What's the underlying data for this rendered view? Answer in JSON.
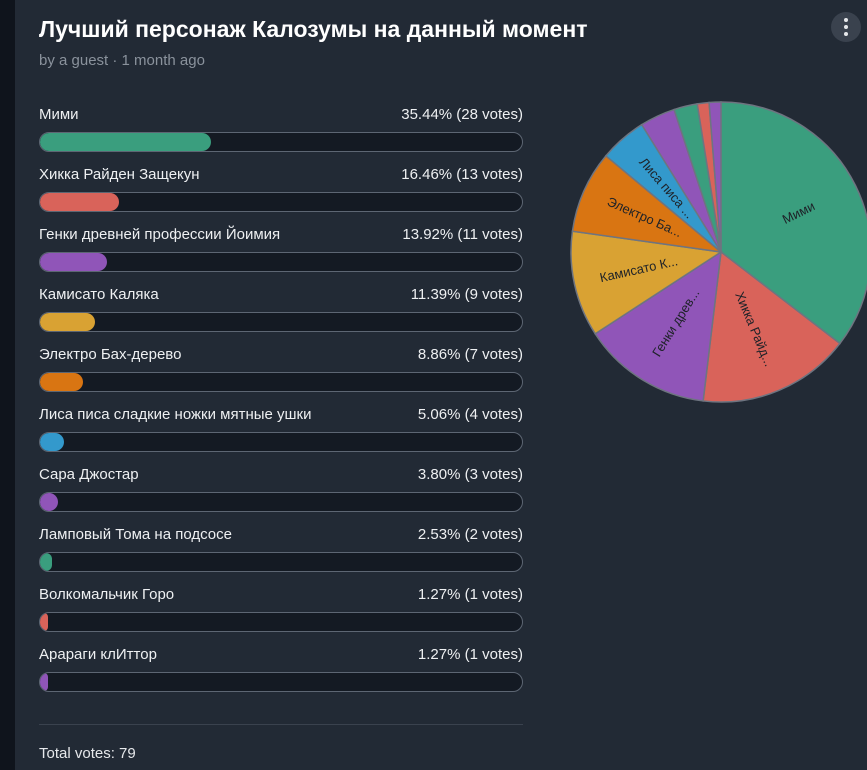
{
  "poll": {
    "title": "Лучший персонаж Калозумы на данный момент",
    "subtitle": "by a guest · 1 month ago",
    "total_votes": "Total votes: 79",
    "menu_icon": "vertical-dots-icon"
  },
  "chart_data": {
    "type": "pie",
    "categories": [
      "Мими",
      "Хикка Райден Защекун",
      "Генки древней профессии Йоимия",
      "Камисато Каляка",
      "Электро Бах-дерево",
      "Лиса писа сладкие ножки мятные ушки",
      "Сара Джостар",
      "Ламповый Тома на подсосе",
      "Волкомальчик Горо",
      "Арараги клИттор"
    ],
    "values": [
      28,
      13,
      11,
      9,
      7,
      4,
      3,
      2,
      1,
      1
    ],
    "percent_labels": [
      "35.44%",
      "16.46%",
      "13.92%",
      "11.39%",
      "8.86%",
      "5.06%",
      "3.80%",
      "2.53%",
      "1.27%",
      "1.27%"
    ],
    "vote_labels": [
      "(28 votes)",
      "(13 votes)",
      "(11 votes)",
      "(9 votes)",
      "(7 votes)",
      "(4 votes)",
      "(3 votes)",
      "(2 votes)",
      "(1 votes)",
      "(1 votes)"
    ],
    "slice_labels": [
      "Мими",
      "Хикка Райд...",
      "Генки древ...",
      "Камисато К...",
      "Электро Ба...",
      "Лиса писа ...",
      "",
      "",
      "",
      ""
    ],
    "colors": [
      "#3a9e7e",
      "#d9635a",
      "#9055b8",
      "#d9a233",
      "#d97512",
      "#3399cc",
      "#9055b8",
      "#3a9e7e",
      "#d9635a",
      "#9055b8"
    ]
  }
}
